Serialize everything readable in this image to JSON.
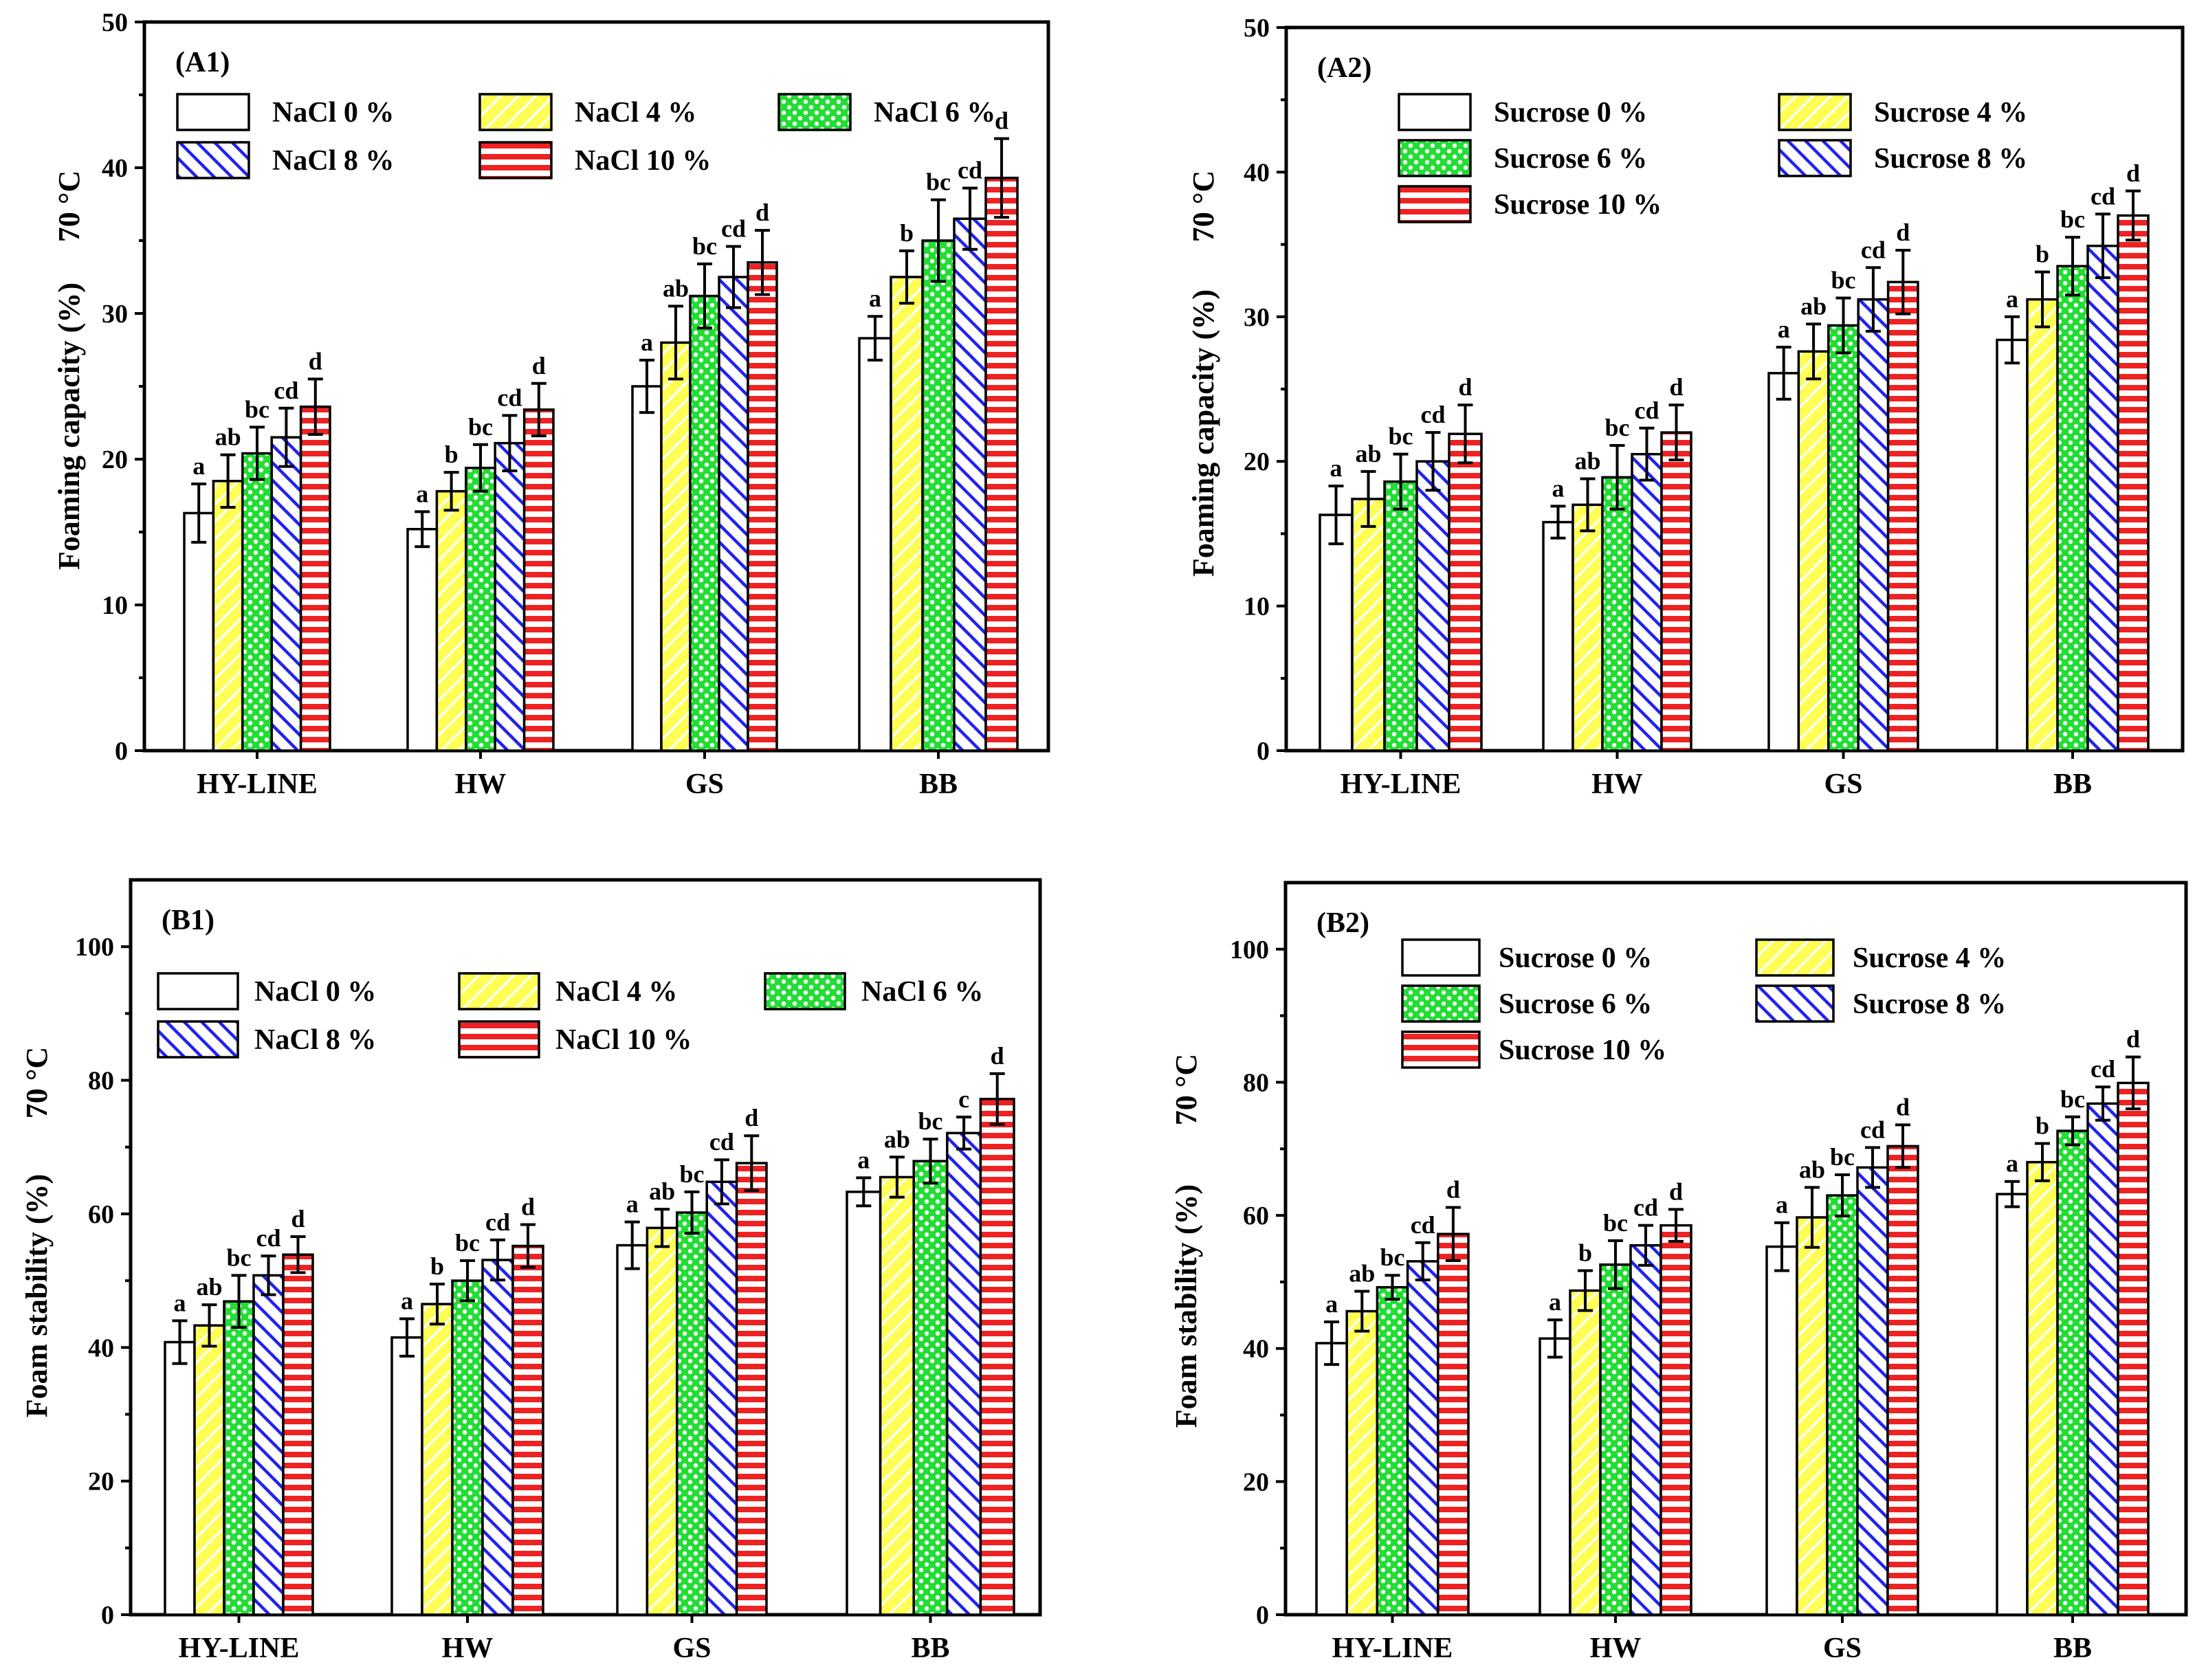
{
  "colors": {
    "s0": "#ffffff",
    "s1": "#ffff55",
    "s2": "#22dd33",
    "s3": "#2222ee",
    "s4": "#ee2222"
  },
  "chart_data": [
    {
      "id": "A1",
      "type": "bar",
      "panel_label": "(A1)",
      "ylabel": "Foaming capacity (%)",
      "temp_label": "70 °C",
      "categories": [
        "HY-LINE",
        "HW",
        "GS",
        "BB"
      ],
      "ylim": [
        0,
        50
      ],
      "yticks": [
        0,
        10,
        20,
        30,
        40,
        50
      ],
      "legend_placement": "top",
      "legend_columns": 3,
      "series": [
        {
          "name": "NaCl  0 %",
          "pattern": "plain",
          "values": [
            16.3,
            15.2,
            25.0,
            28.3
          ],
          "errors": [
            2.0,
            1.2,
            1.8,
            1.5
          ],
          "letters": [
            "a",
            "a",
            "a",
            "a"
          ]
        },
        {
          "name": "NaCl  4 %",
          "pattern": "diag-left",
          "values": [
            18.5,
            17.8,
            28.0,
            32.5
          ],
          "errors": [
            1.8,
            1.3,
            2.5,
            1.8
          ],
          "letters": [
            "ab",
            "b",
            "ab",
            "b"
          ]
        },
        {
          "name": "NaCl  6 %",
          "pattern": "dots",
          "values": [
            20.4,
            19.4,
            31.2,
            35.0
          ],
          "errors": [
            1.8,
            1.6,
            2.2,
            2.8
          ],
          "letters": [
            "bc",
            "bc",
            "bc",
            "bc"
          ]
        },
        {
          "name": "NaCl  8 %",
          "pattern": "diag-right",
          "values": [
            21.5,
            21.1,
            32.5,
            36.5
          ],
          "errors": [
            2.0,
            1.9,
            2.1,
            2.1
          ],
          "letters": [
            "cd",
            "cd",
            "cd",
            "cd"
          ]
        },
        {
          "name": "NaCl  10 %",
          "pattern": "horiz",
          "values": [
            23.6,
            23.4,
            33.5,
            39.3
          ],
          "errors": [
            1.9,
            1.8,
            2.2,
            2.7
          ],
          "letters": [
            "d",
            "d",
            "d",
            "d"
          ]
        }
      ]
    },
    {
      "id": "A2",
      "type": "bar",
      "panel_label": "(A2)",
      "ylabel": "Foaming capacity (%)",
      "temp_label": "70 °C",
      "categories": [
        "HY-LINE",
        "HW",
        "GS",
        "BB"
      ],
      "ylim": [
        0,
        50
      ],
      "yticks": [
        0,
        10,
        20,
        30,
        40,
        50
      ],
      "legend_placement": "top",
      "legend_columns": 2,
      "series": [
        {
          "name": "Sucrose  0 %",
          "pattern": "plain",
          "values": [
            16.3,
            15.8,
            26.1,
            28.4
          ],
          "errors": [
            2.0,
            1.1,
            1.8,
            1.6
          ],
          "letters": [
            "a",
            "a",
            "a",
            "a"
          ]
        },
        {
          "name": "Sucrose  4 %",
          "pattern": "diag-left",
          "values": [
            17.4,
            17.0,
            27.6,
            31.2
          ],
          "errors": [
            1.9,
            1.8,
            1.9,
            1.9
          ],
          "letters": [
            "ab",
            "ab",
            "ab",
            "b"
          ]
        },
        {
          "name": "Sucrose  6 %",
          "pattern": "dots",
          "values": [
            18.6,
            18.9,
            29.4,
            33.5
          ],
          "errors": [
            1.9,
            2.2,
            1.9,
            2.0
          ],
          "letters": [
            "bc",
            "bc",
            "bc",
            "bc"
          ]
        },
        {
          "name": "Sucrose  8 %",
          "pattern": "diag-right",
          "values": [
            20.0,
            20.5,
            31.2,
            34.9
          ],
          "errors": [
            2.0,
            1.8,
            2.2,
            2.2
          ],
          "letters": [
            "cd",
            "cd",
            "cd",
            "cd"
          ]
        },
        {
          "name": "Sucrose  10 %",
          "pattern": "horiz",
          "values": [
            21.9,
            22.0,
            32.4,
            37.0
          ],
          "errors": [
            2.0,
            1.9,
            2.2,
            1.7
          ],
          "letters": [
            "d",
            "d",
            "d",
            "d"
          ]
        }
      ]
    },
    {
      "id": "B1",
      "type": "bar",
      "panel_label": "(B1)",
      "ylabel": "Foam stability (%)",
      "temp_label": "70 °C",
      "categories": [
        "HY-LINE",
        "HW",
        "GS",
        "BB"
      ],
      "ylim": [
        0,
        110
      ],
      "yticks": [
        0,
        20,
        40,
        60,
        80,
        100
      ],
      "legend_placement": "top",
      "legend_columns": 3,
      "series": [
        {
          "name": "NaCl  0 %",
          "pattern": "plain",
          "values": [
            40.8,
            41.5,
            55.3,
            63.3
          ],
          "errors": [
            3.2,
            2.8,
            3.5,
            2.1
          ],
          "letters": [
            "a",
            "a",
            "a",
            "a"
          ]
        },
        {
          "name": "NaCl  4 %",
          "pattern": "diag-left",
          "values": [
            43.3,
            46.5,
            57.9,
            65.5
          ],
          "errors": [
            3.1,
            3.0,
            2.8,
            3.0
          ],
          "letters": [
            "ab",
            "b",
            "ab",
            "ab"
          ]
        },
        {
          "name": "NaCl  6 %",
          "pattern": "dots",
          "values": [
            46.9,
            50.0,
            60.2,
            67.9
          ],
          "errors": [
            3.9,
            3.0,
            3.1,
            3.3
          ],
          "letters": [
            "bc",
            "bc",
            "bc",
            "bc"
          ]
        },
        {
          "name": "NaCl  8 %",
          "pattern": "diag-right",
          "values": [
            50.8,
            53.1,
            64.8,
            72.1
          ],
          "errors": [
            2.9,
            3.0,
            3.3,
            2.4
          ],
          "letters": [
            "cd",
            "cd",
            "cd",
            "c"
          ]
        },
        {
          "name": "NaCl  10 %",
          "pattern": "horiz",
          "values": [
            53.9,
            55.2,
            67.6,
            77.2
          ],
          "errors": [
            2.7,
            3.2,
            4.1,
            3.8
          ],
          "letters": [
            "d",
            "d",
            "d",
            "d"
          ]
        }
      ]
    },
    {
      "id": "B2",
      "type": "bar",
      "panel_label": "(B2)",
      "ylabel": "Foam stability (%)",
      "temp_label": "70 °C",
      "categories": [
        "HY-LINE",
        "HW",
        "GS",
        "BB"
      ],
      "ylim": [
        0,
        110
      ],
      "yticks": [
        0,
        20,
        40,
        60,
        80,
        100
      ],
      "legend_placement": "top",
      "legend_columns": 2,
      "series": [
        {
          "name": "Sucrose  0 %",
          "pattern": "plain",
          "values": [
            40.8,
            41.5,
            55.3,
            63.2
          ],
          "errors": [
            3.2,
            2.8,
            3.6,
            1.9
          ],
          "letters": [
            "a",
            "a",
            "a",
            "a"
          ]
        },
        {
          "name": "Sucrose  4 %",
          "pattern": "diag-left",
          "values": [
            45.6,
            48.7,
            59.7,
            68.0
          ],
          "errors": [
            3.0,
            3.0,
            4.5,
            2.8
          ],
          "letters": [
            "ab",
            "b",
            "ab",
            "b"
          ]
        },
        {
          "name": "Sucrose  6 %",
          "pattern": "dots",
          "values": [
            49.2,
            52.6,
            63.0,
            72.7
          ],
          "errors": [
            1.8,
            3.6,
            3.1,
            2.1
          ],
          "letters": [
            "bc",
            "bc",
            "bc",
            "bc"
          ]
        },
        {
          "name": "Sucrose  8 %",
          "pattern": "diag-right",
          "values": [
            53.1,
            55.5,
            67.2,
            76.8
          ],
          "errors": [
            2.8,
            3.0,
            3.0,
            2.5
          ],
          "letters": [
            "cd",
            "cd",
            "cd",
            "cd"
          ]
        },
        {
          "name": "Sucrose  10 %",
          "pattern": "horiz",
          "values": [
            57.2,
            58.5,
            70.4,
            79.9
          ],
          "errors": [
            4.0,
            2.4,
            3.2,
            3.9
          ],
          "letters": [
            "d",
            "d",
            "d",
            "d"
          ]
        }
      ]
    }
  ]
}
